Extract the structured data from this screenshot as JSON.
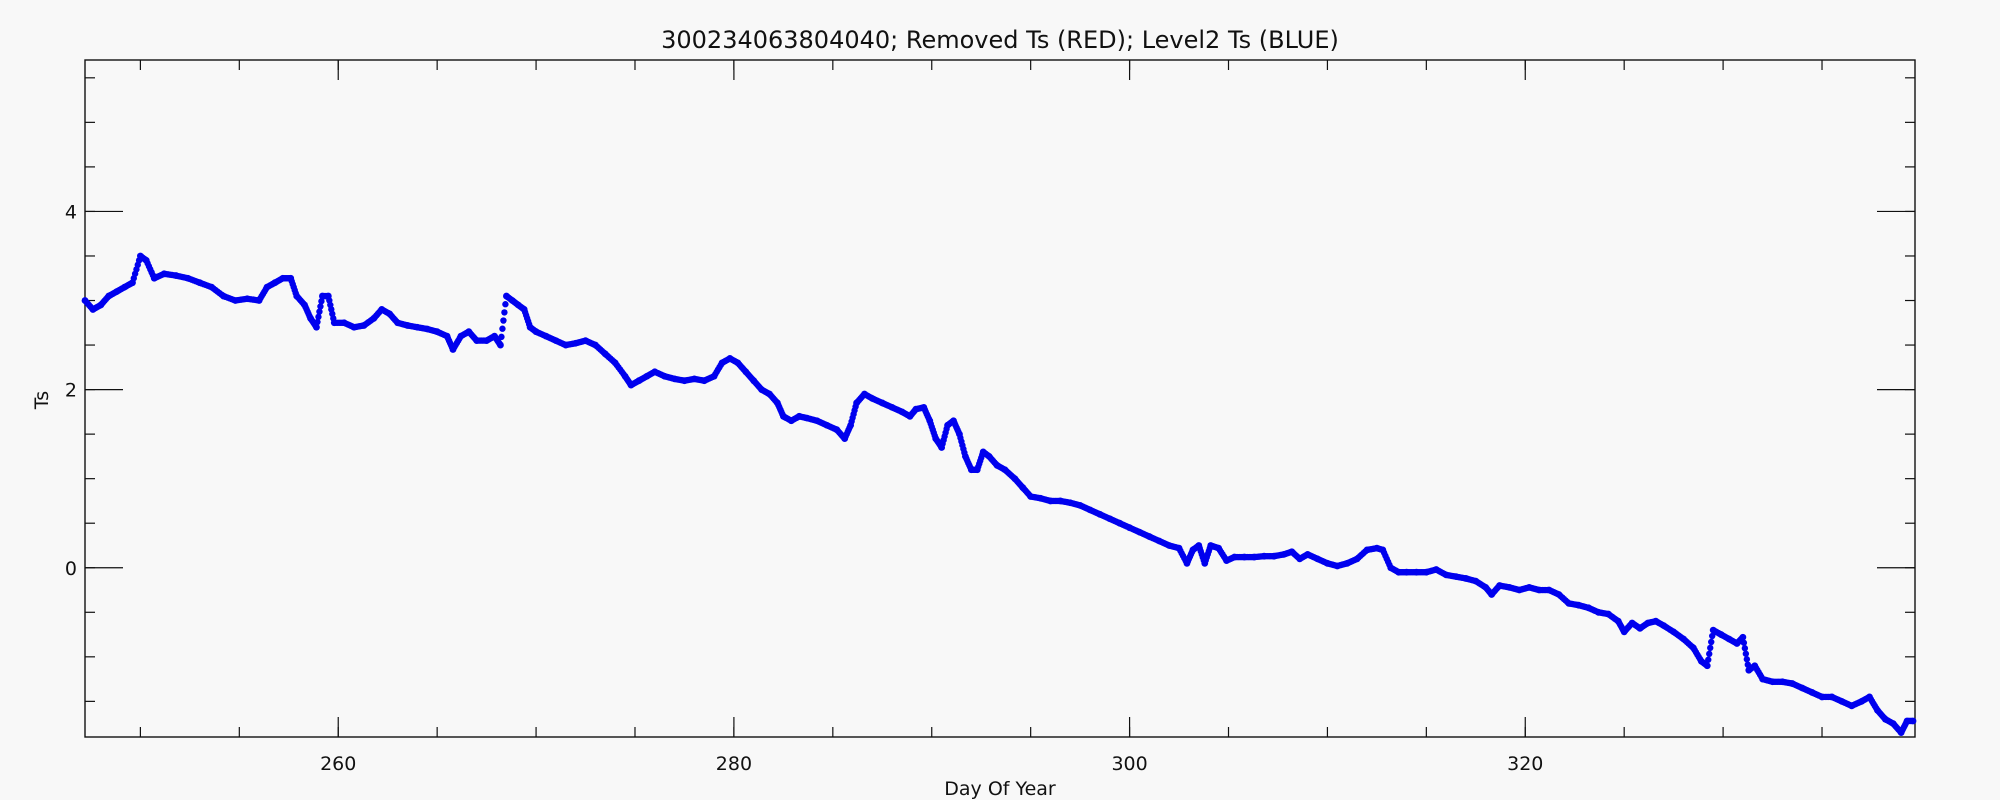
{
  "chart_data": {
    "type": "scatter",
    "title": "300234063804040; Removed Ts (RED); Level2 Ts (BLUE)",
    "xlabel": "Day Of Year",
    "ylabel": "Ts",
    "xlim": [
      247.2,
      339.7
    ],
    "ylim": [
      -1.9,
      5.7
    ],
    "x_ticks": [
      260,
      280,
      300,
      320
    ],
    "y_ticks": [
      0,
      2,
      4
    ],
    "x_minor_step": 5,
    "y_minor_step": 0.5,
    "grid": false,
    "marker_color": "#0000ee",
    "series": [
      {
        "name": "Level2 Ts",
        "color": "#0000ee",
        "points": [
          [
            247.2,
            3.0
          ],
          [
            247.6,
            2.9
          ],
          [
            248.0,
            2.95
          ],
          [
            248.4,
            3.05
          ],
          [
            248.8,
            3.1
          ],
          [
            249.2,
            3.15
          ],
          [
            249.6,
            3.2
          ],
          [
            250.0,
            3.5
          ],
          [
            250.3,
            3.45
          ],
          [
            250.7,
            3.25
          ],
          [
            251.2,
            3.3
          ],
          [
            251.8,
            3.28
          ],
          [
            252.4,
            3.25
          ],
          [
            253.0,
            3.2
          ],
          [
            253.6,
            3.15
          ],
          [
            254.2,
            3.05
          ],
          [
            254.8,
            3.0
          ],
          [
            255.4,
            3.02
          ],
          [
            256.0,
            3.0
          ],
          [
            256.4,
            3.15
          ],
          [
            256.8,
            3.2
          ],
          [
            257.2,
            3.25
          ],
          [
            257.6,
            3.25
          ],
          [
            257.9,
            3.05
          ],
          [
            258.3,
            2.95
          ],
          [
            258.6,
            2.8
          ],
          [
            258.9,
            2.7
          ],
          [
            259.2,
            3.05
          ],
          [
            259.5,
            3.05
          ],
          [
            259.8,
            2.75
          ],
          [
            260.3,
            2.75
          ],
          [
            260.8,
            2.7
          ],
          [
            261.3,
            2.72
          ],
          [
            261.8,
            2.8
          ],
          [
            262.2,
            2.9
          ],
          [
            262.6,
            2.85
          ],
          [
            263.0,
            2.75
          ],
          [
            263.5,
            2.72
          ],
          [
            264.0,
            2.7
          ],
          [
            264.5,
            2.68
          ],
          [
            265.0,
            2.65
          ],
          [
            265.5,
            2.6
          ],
          [
            265.8,
            2.45
          ],
          [
            266.2,
            2.6
          ],
          [
            266.6,
            2.65
          ],
          [
            267.0,
            2.55
          ],
          [
            267.5,
            2.55
          ],
          [
            267.9,
            2.6
          ],
          [
            268.2,
            2.5
          ],
          [
            268.5,
            3.05
          ],
          [
            268.8,
            3.0
          ],
          [
            269.1,
            2.95
          ],
          [
            269.4,
            2.9
          ],
          [
            269.7,
            2.7
          ],
          [
            270.0,
            2.65
          ],
          [
            270.5,
            2.6
          ],
          [
            271.0,
            2.55
          ],
          [
            271.5,
            2.5
          ],
          [
            272.0,
            2.52
          ],
          [
            272.5,
            2.55
          ],
          [
            273.0,
            2.5
          ],
          [
            273.5,
            2.4
          ],
          [
            274.0,
            2.3
          ],
          [
            274.5,
            2.15
          ],
          [
            274.8,
            2.05
          ],
          [
            275.2,
            2.1
          ],
          [
            275.6,
            2.15
          ],
          [
            276.0,
            2.2
          ],
          [
            276.5,
            2.15
          ],
          [
            277.0,
            2.12
          ],
          [
            277.5,
            2.1
          ],
          [
            278.0,
            2.12
          ],
          [
            278.5,
            2.1
          ],
          [
            279.0,
            2.15
          ],
          [
            279.4,
            2.3
          ],
          [
            279.8,
            2.35
          ],
          [
            280.2,
            2.3
          ],
          [
            280.6,
            2.2
          ],
          [
            281.0,
            2.1
          ],
          [
            281.4,
            2.0
          ],
          [
            281.8,
            1.95
          ],
          [
            282.2,
            1.85
          ],
          [
            282.5,
            1.7
          ],
          [
            282.9,
            1.65
          ],
          [
            283.3,
            1.7
          ],
          [
            283.7,
            1.68
          ],
          [
            284.2,
            1.65
          ],
          [
            284.7,
            1.6
          ],
          [
            285.2,
            1.55
          ],
          [
            285.6,
            1.45
          ],
          [
            285.9,
            1.6
          ],
          [
            286.2,
            1.85
          ],
          [
            286.6,
            1.95
          ],
          [
            287.0,
            1.9
          ],
          [
            287.5,
            1.85
          ],
          [
            288.0,
            1.8
          ],
          [
            288.5,
            1.75
          ],
          [
            288.9,
            1.7
          ],
          [
            289.2,
            1.78
          ],
          [
            289.6,
            1.8
          ],
          [
            289.9,
            1.65
          ],
          [
            290.2,
            1.45
          ],
          [
            290.5,
            1.35
          ],
          [
            290.8,
            1.6
          ],
          [
            291.1,
            1.65
          ],
          [
            291.4,
            1.5
          ],
          [
            291.7,
            1.25
          ],
          [
            292.0,
            1.1
          ],
          [
            292.3,
            1.1
          ],
          [
            292.6,
            1.3
          ],
          [
            292.9,
            1.25
          ],
          [
            293.3,
            1.15
          ],
          [
            293.7,
            1.1
          ],
          [
            294.2,
            1.0
          ],
          [
            294.6,
            0.9
          ],
          [
            295.0,
            0.8
          ],
          [
            295.5,
            0.78
          ],
          [
            296.0,
            0.75
          ],
          [
            296.5,
            0.75
          ],
          [
            297.0,
            0.73
          ],
          [
            297.5,
            0.7
          ],
          [
            298.0,
            0.65
          ],
          [
            298.5,
            0.6
          ],
          [
            299.0,
            0.55
          ],
          [
            299.5,
            0.5
          ],
          [
            300.0,
            0.45
          ],
          [
            300.5,
            0.4
          ],
          [
            301.0,
            0.35
          ],
          [
            301.5,
            0.3
          ],
          [
            302.0,
            0.25
          ],
          [
            302.5,
            0.22
          ],
          [
            302.9,
            0.05
          ],
          [
            303.2,
            0.2
          ],
          [
            303.5,
            0.25
          ],
          [
            303.8,
            0.05
          ],
          [
            304.1,
            0.25
          ],
          [
            304.5,
            0.22
          ],
          [
            304.9,
            0.08
          ],
          [
            305.3,
            0.12
          ],
          [
            305.8,
            0.12
          ],
          [
            306.3,
            0.12
          ],
          [
            306.8,
            0.13
          ],
          [
            307.3,
            0.13
          ],
          [
            307.8,
            0.15
          ],
          [
            308.2,
            0.18
          ],
          [
            308.6,
            0.1
          ],
          [
            309.0,
            0.15
          ],
          [
            309.5,
            0.1
          ],
          [
            310.0,
            0.05
          ],
          [
            310.5,
            0.02
          ],
          [
            311.0,
            0.05
          ],
          [
            311.5,
            0.1
          ],
          [
            312.0,
            0.2
          ],
          [
            312.5,
            0.22
          ],
          [
            312.8,
            0.2
          ],
          [
            313.2,
            0.0
          ],
          [
            313.6,
            -0.05
          ],
          [
            314.0,
            -0.05
          ],
          [
            314.5,
            -0.05
          ],
          [
            315.0,
            -0.05
          ],
          [
            315.5,
            -0.02
          ],
          [
            316.0,
            -0.08
          ],
          [
            316.5,
            -0.1
          ],
          [
            317.0,
            -0.12
          ],
          [
            317.5,
            -0.15
          ],
          [
            318.0,
            -0.22
          ],
          [
            318.3,
            -0.3
          ],
          [
            318.7,
            -0.2
          ],
          [
            319.2,
            -0.22
          ],
          [
            319.7,
            -0.25
          ],
          [
            320.2,
            -0.22
          ],
          [
            320.7,
            -0.25
          ],
          [
            321.2,
            -0.25
          ],
          [
            321.7,
            -0.3
          ],
          [
            322.2,
            -0.4
          ],
          [
            322.7,
            -0.42
          ],
          [
            323.2,
            -0.45
          ],
          [
            323.7,
            -0.5
          ],
          [
            324.2,
            -0.52
          ],
          [
            324.7,
            -0.6
          ],
          [
            325.0,
            -0.72
          ],
          [
            325.4,
            -0.62
          ],
          [
            325.8,
            -0.68
          ],
          [
            326.2,
            -0.62
          ],
          [
            326.6,
            -0.6
          ],
          [
            327.0,
            -0.65
          ],
          [
            327.5,
            -0.72
          ],
          [
            328.0,
            -0.8
          ],
          [
            328.5,
            -0.9
          ],
          [
            328.9,
            -1.05
          ],
          [
            329.2,
            -1.1
          ],
          [
            329.5,
            -0.7
          ],
          [
            329.9,
            -0.75
          ],
          [
            330.3,
            -0.8
          ],
          [
            330.7,
            -0.85
          ],
          [
            331.0,
            -0.78
          ],
          [
            331.3,
            -1.15
          ],
          [
            331.6,
            -1.1
          ],
          [
            332.0,
            -1.25
          ],
          [
            332.5,
            -1.28
          ],
          [
            333.0,
            -1.28
          ],
          [
            333.5,
            -1.3
          ],
          [
            334.0,
            -1.35
          ],
          [
            334.5,
            -1.4
          ],
          [
            335.0,
            -1.45
          ],
          [
            335.5,
            -1.45
          ],
          [
            336.0,
            -1.5
          ],
          [
            336.5,
            -1.55
          ],
          [
            337.0,
            -1.5
          ],
          [
            337.4,
            -1.45
          ],
          [
            337.8,
            -1.6
          ],
          [
            338.2,
            -1.7
          ],
          [
            338.6,
            -1.75
          ],
          [
            339.0,
            -1.85
          ],
          [
            339.3,
            -1.72
          ],
          [
            339.6,
            -1.72
          ]
        ]
      }
    ]
  }
}
